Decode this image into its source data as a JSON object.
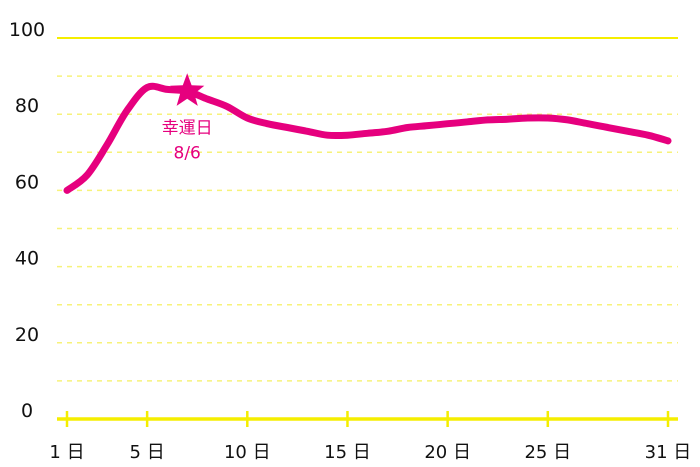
{
  "chart_data": {
    "type": "line",
    "title": "",
    "xlabel": "",
    "ylabel": "",
    "x": [
      1,
      2,
      3,
      4,
      5,
      6,
      7,
      8,
      9,
      10,
      11,
      12,
      13,
      14,
      15,
      16,
      17,
      18,
      19,
      20,
      21,
      22,
      23,
      24,
      25,
      26,
      27,
      28,
      29,
      30,
      31
    ],
    "series": [
      {
        "values": [
          60,
          64,
          72,
          81,
          87,
          86.5,
          86,
          84,
          82,
          79,
          77.5,
          76.5,
          75.5,
          74.5,
          74.5,
          75,
          75.5,
          76.5,
          77,
          77.5,
          78,
          78.5,
          78.7,
          79,
          79,
          78.5,
          77.5,
          76.5,
          75.5,
          74.5,
          73
        ]
      }
    ],
    "ylim": [
      0,
      100
    ],
    "yticks": [
      0,
      20,
      40,
      60,
      80,
      100
    ],
    "xticks": [
      {
        "value": 1,
        "label": "1 日"
      },
      {
        "value": 5,
        "label": "5 日"
      },
      {
        "value": 10,
        "label": "10 日"
      },
      {
        "value": 15,
        "label": "15 日"
      },
      {
        "value": 20,
        "label": "20 日"
      },
      {
        "value": 25,
        "label": "25 日"
      },
      {
        "value": 31,
        "label": "31 日"
      }
    ],
    "grid": true,
    "annotation": {
      "x": 7,
      "y": 86,
      "marker": "star",
      "line1": "幸運日",
      "line2": "8/6"
    },
    "colors": {
      "line": "#e6007e",
      "axis": "#f5ee00",
      "grid": "#f7f27a",
      "annotation": "#e6007e"
    }
  }
}
